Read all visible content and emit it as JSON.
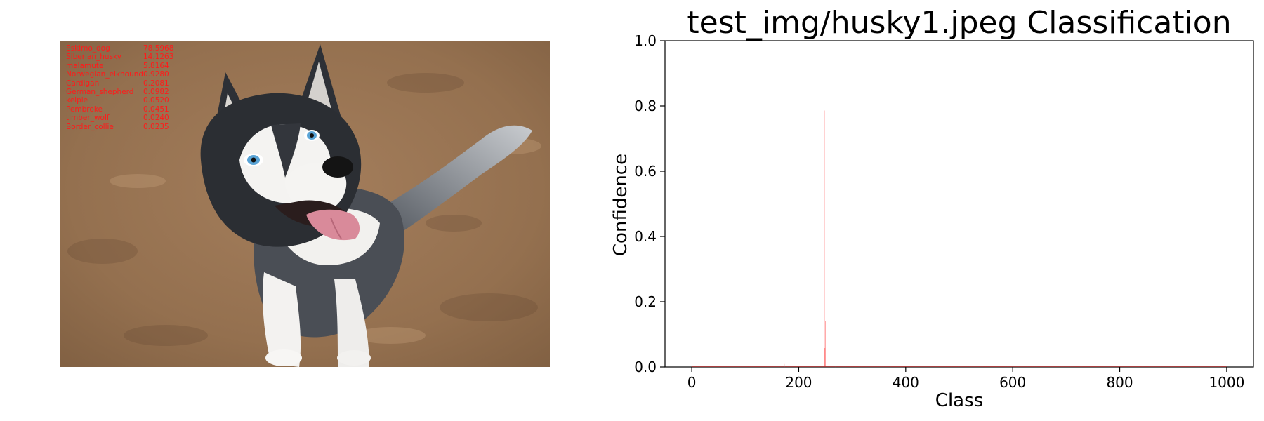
{
  "left_panel": {
    "image_alt": "Siberian husky puppy sitting on sandy ground, looking up",
    "predictions": [
      {
        "label": "Eskimo_dog",
        "score": "78.5968"
      },
      {
        "label": "Siberian_husky",
        "score": "14.1263"
      },
      {
        "label": "malamute",
        "score": "5.8164"
      },
      {
        "label": "Norwegian_elkhound",
        "score": "0.9280"
      },
      {
        "label": "Cardigan",
        "score": "0.2081"
      },
      {
        "label": "German_shepherd",
        "score": "0.0982"
      },
      {
        "label": "kelpie",
        "score": "0.0520"
      },
      {
        "label": "Pembroke",
        "score": "0.0451"
      },
      {
        "label": "timber_wolf",
        "score": "0.0240"
      },
      {
        "label": "Border_collie",
        "score": "0.0235"
      }
    ],
    "prediction_color": "#ff1a1a"
  },
  "chart_data": {
    "type": "bar",
    "title": "test_img/husky1.jpeg Classification",
    "xlabel": "Class",
    "ylabel": "Confidence",
    "xlim": [
      -50,
      1050
    ],
    "ylim": [
      0.0,
      1.0
    ],
    "x_ticks": [
      0,
      200,
      400,
      600,
      800,
      1000
    ],
    "x_tick_labels": [
      "0",
      "200",
      "400",
      "600",
      "800",
      "1000"
    ],
    "y_ticks": [
      0.0,
      0.2,
      0.4,
      0.6,
      0.8,
      1.0
    ],
    "y_tick_labels": [
      "0.0",
      "0.2",
      "0.4",
      "0.6",
      "0.8",
      "1.0"
    ],
    "num_classes": 1000,
    "bar_color": "#ff0000",
    "bar_alpha": 0.55,
    "baseline_value": 0.002,
    "bars": [
      {
        "x": 172,
        "value": 0.0024
      },
      {
        "x": 173,
        "value": 0.0092
      },
      {
        "x": 174,
        "value": 0.0005
      },
      {
        "x": 248,
        "value": 0.786
      },
      {
        "x": 249,
        "value": 0.058
      },
      {
        "x": 250,
        "value": 0.141
      },
      {
        "x": 269,
        "value": 0.0002
      }
    ],
    "grid": false,
    "legend": "none"
  }
}
